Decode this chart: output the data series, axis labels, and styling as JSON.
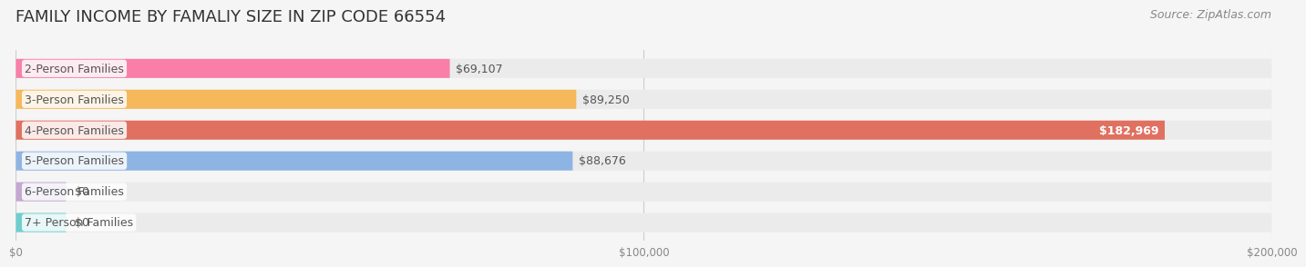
{
  "title": "FAMILY INCOME BY FAMALIY SIZE IN ZIP CODE 66554",
  "source": "Source: ZipAtlas.com",
  "categories": [
    "2-Person Families",
    "3-Person Families",
    "4-Person Families",
    "5-Person Families",
    "6-Person Families",
    "7+ Person Families"
  ],
  "values": [
    69107,
    89250,
    182969,
    88676,
    0,
    0
  ],
  "bar_colors": [
    "#F97FA8",
    "#F5B85A",
    "#E07060",
    "#8EB4E3",
    "#C3A8D1",
    "#6ECECE"
  ],
  "label_colors": [
    "#F97FA8",
    "#F5B85A",
    "#E07060",
    "#8EB4E3",
    "#C3A8D1",
    "#6ECECE"
  ],
  "value_labels": [
    "$69,107",
    "$89,250",
    "$182,969",
    "$88,676",
    "$0",
    "$0"
  ],
  "xlim": [
    0,
    200000
  ],
  "xticks": [
    0,
    100000,
    200000
  ],
  "xtick_labels": [
    "$0",
    "$100,000",
    "$200,000"
  ],
  "background_color": "#f5f5f5",
  "bar_bg_color": "#ebebeb",
  "title_fontsize": 13,
  "source_fontsize": 9,
  "label_fontsize": 9,
  "value_fontsize": 9
}
